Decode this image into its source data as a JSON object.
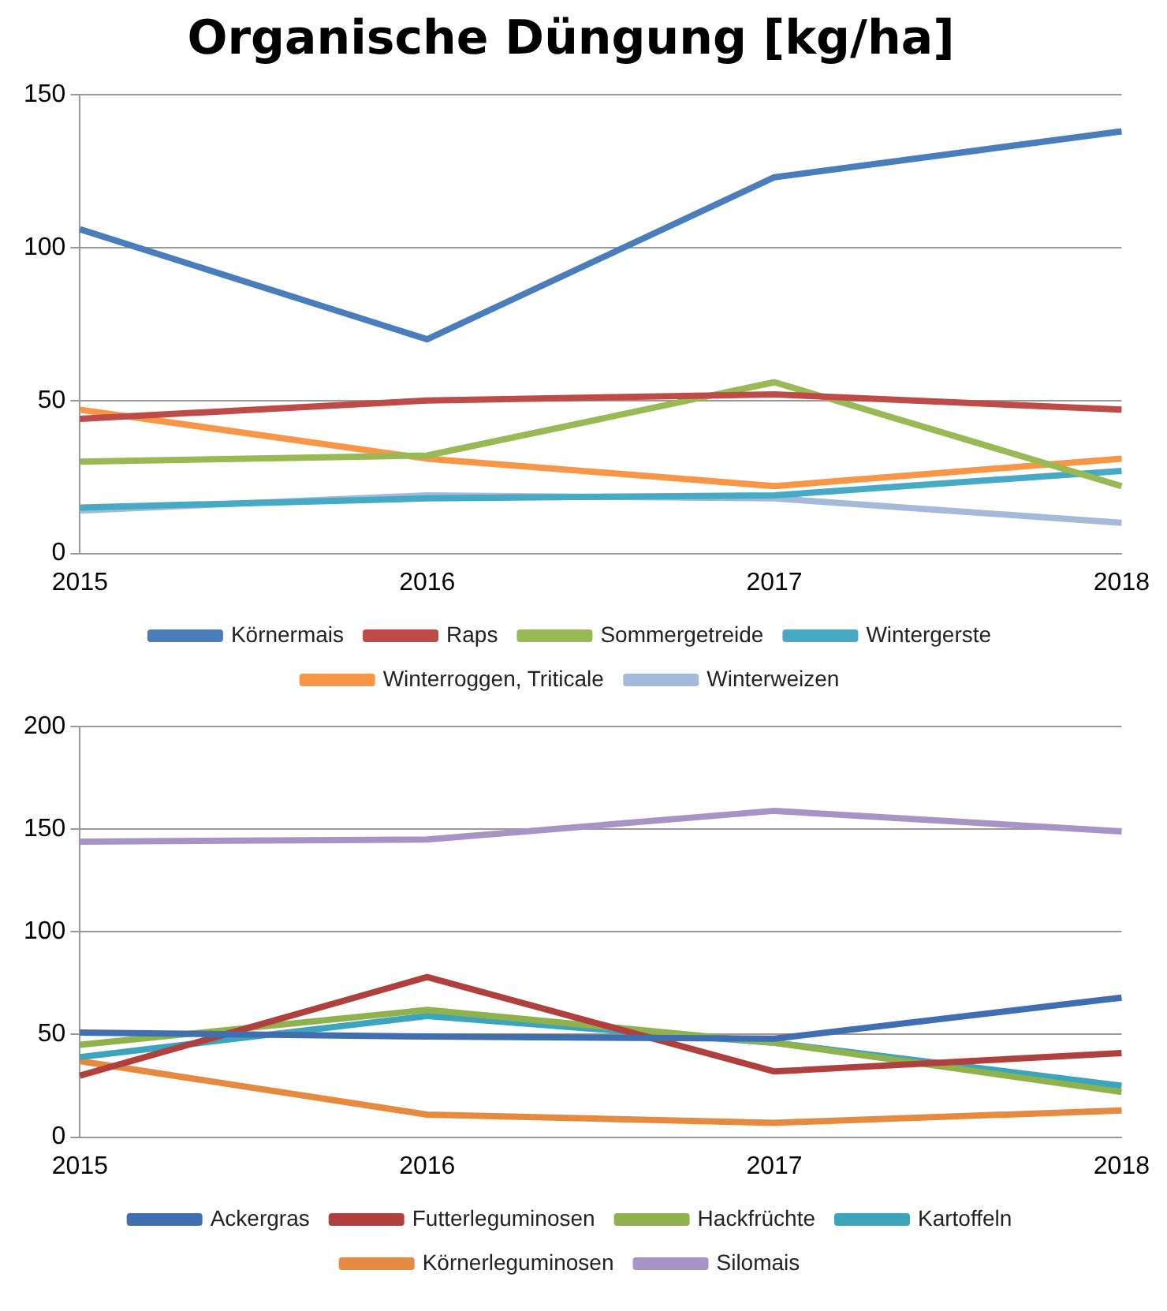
{
  "chart_data": [
    {
      "type": "line",
      "title": "Organische Düngung [kg/ha]",
      "categories": [
        "2015",
        "2016",
        "2017",
        "2018"
      ],
      "ylim": [
        0,
        150
      ],
      "yticks": [
        0,
        50,
        100,
        150
      ],
      "grid": "y",
      "legend": "bottom",
      "marker": "none",
      "series": [
        {
          "name": "Körnermais",
          "color": "#4a7ebb",
          "values": [
            106,
            70,
            123,
            138
          ]
        },
        {
          "name": "Raps",
          "color": "#be4b48",
          "values": [
            44,
            50,
            52,
            47
          ]
        },
        {
          "name": "Sommergetreide",
          "color": "#98b954",
          "values": [
            30,
            32,
            56,
            22
          ]
        },
        {
          "name": "Wintergerste",
          "color": "#46aac5",
          "values": [
            15,
            18,
            19,
            27
          ]
        },
        {
          "name": "Winterroggen, Triticale",
          "color": "#f79646",
          "values": [
            47,
            31,
            22,
            31
          ]
        },
        {
          "name": "Winterweizen",
          "color": "#a5b9d8",
          "values": [
            14,
            19,
            18,
            10
          ]
        }
      ]
    },
    {
      "type": "line",
      "categories": [
        "2015",
        "2016",
        "2017",
        "2018"
      ],
      "ylim": [
        0,
        200
      ],
      "yticks": [
        0,
        50,
        100,
        150,
        200
      ],
      "grid": "y",
      "legend": "bottom",
      "marker": "none",
      "series": [
        {
          "name": "Ackergras",
          "color": "#3f6fb0",
          "values": [
            51,
            49,
            48,
            68
          ]
        },
        {
          "name": "Futterleguminosen",
          "color": "#b0403e",
          "values": [
            30,
            78,
            32,
            41
          ]
        },
        {
          "name": "Hackfrüchte",
          "color": "#8fb24d",
          "values": [
            45,
            62,
            46,
            22
          ]
        },
        {
          "name": "Kartoffeln",
          "color": "#3ba5bd",
          "values": [
            39,
            59,
            46,
            25
          ]
        },
        {
          "name": "Körnerleguminosen",
          "color": "#e58a3e",
          "values": [
            37,
            11,
            7,
            13
          ]
        },
        {
          "name": "Silomais",
          "color": "#a893c6",
          "values": [
            144,
            145,
            159,
            149
          ]
        }
      ]
    }
  ]
}
